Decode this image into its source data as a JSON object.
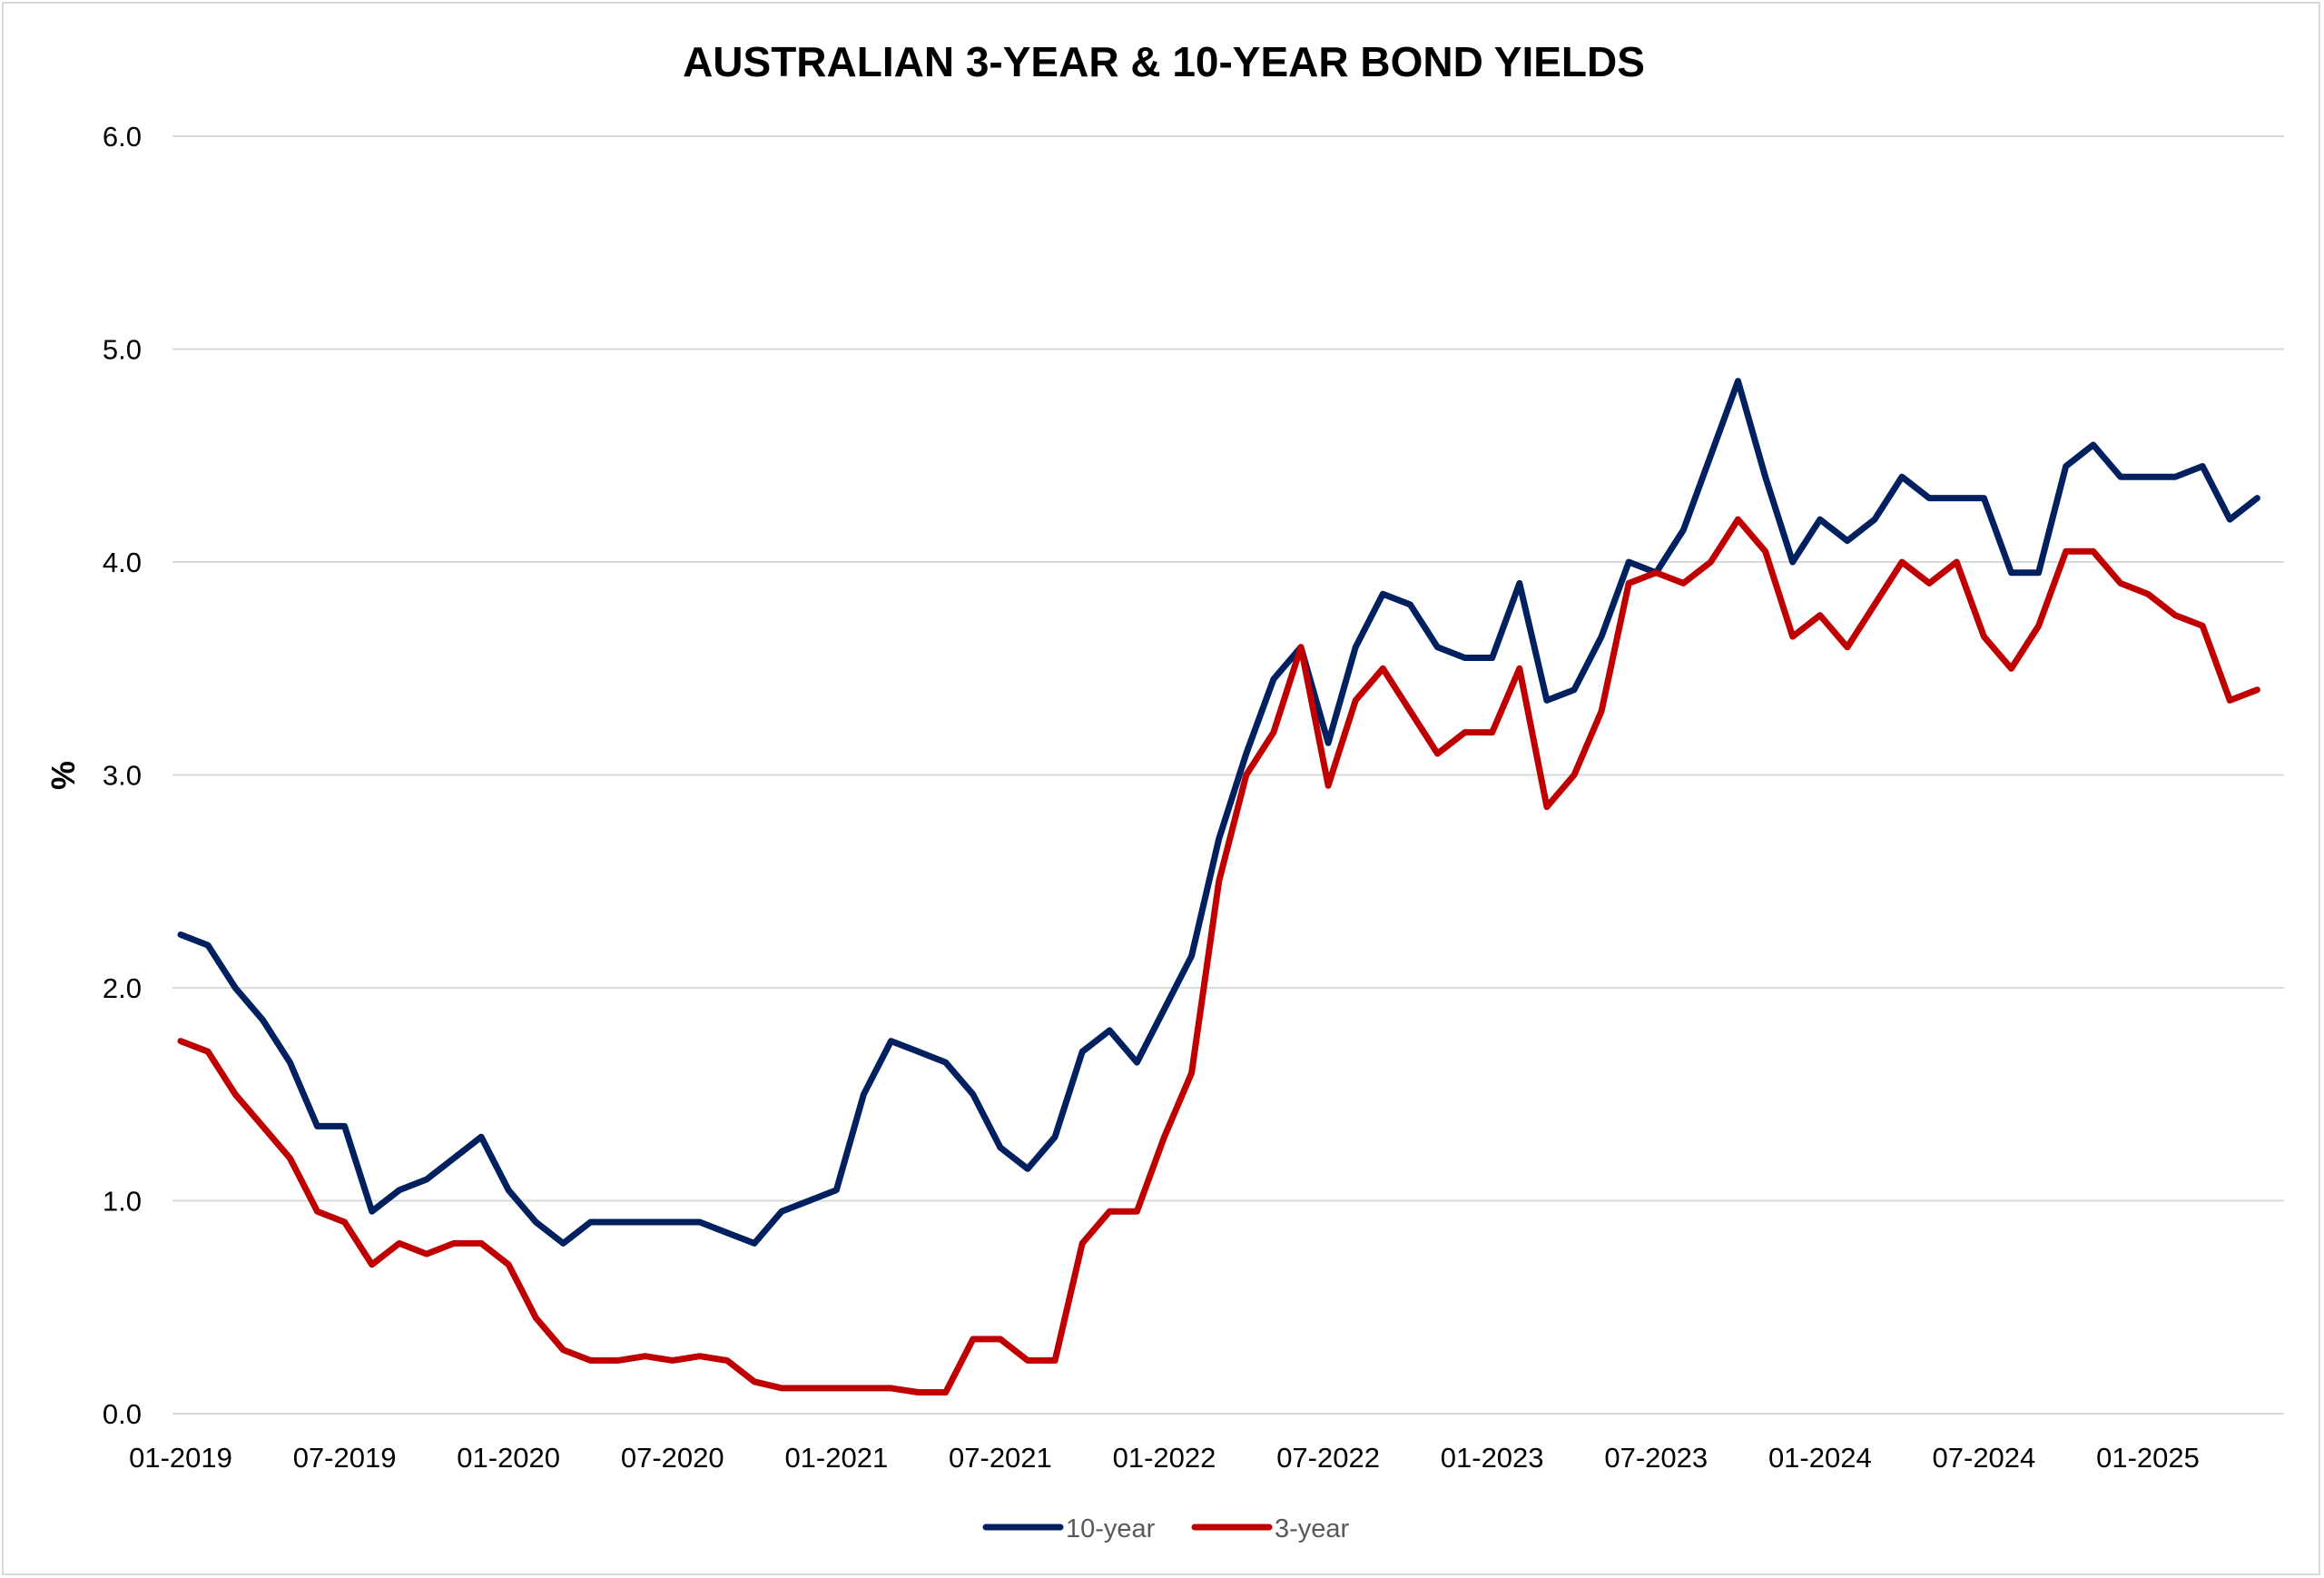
{
  "chart_data": {
    "type": "line",
    "title": "AUSTRALIAN 3-YEAR & 10-YEAR BOND YIELDS",
    "xlabel": "",
    "ylabel": "%",
    "ylim": [
      0,
      6
    ],
    "yticks": [
      "0.0",
      "1.0",
      "2.0",
      "3.0",
      "4.0",
      "5.0",
      "6.0"
    ],
    "xticks": [
      "01-2019",
      "07-2019",
      "01-2020",
      "07-2020",
      "01-2021",
      "07-2021",
      "01-2022",
      "07-2022",
      "01-2023",
      "07-2023",
      "01-2024",
      "07-2024",
      "01-2025"
    ],
    "grid": true,
    "legend_position": "bottom",
    "x": [
      "2019-01",
      "2019-02",
      "2019-03",
      "2019-04",
      "2019-05",
      "2019-06",
      "2019-07",
      "2019-08",
      "2019-09",
      "2019-10",
      "2019-11",
      "2019-12",
      "2020-01",
      "2020-02",
      "2020-03",
      "2020-04",
      "2020-05",
      "2020-06",
      "2020-07",
      "2020-08",
      "2020-09",
      "2020-10",
      "2020-11",
      "2020-12",
      "2021-01",
      "2021-02",
      "2021-03",
      "2021-04",
      "2021-05",
      "2021-06",
      "2021-07",
      "2021-08",
      "2021-09",
      "2021-10",
      "2021-11",
      "2021-12",
      "2022-01",
      "2022-02",
      "2022-03",
      "2022-04",
      "2022-05",
      "2022-06",
      "2022-07",
      "2022-08",
      "2022-09",
      "2022-10",
      "2022-11",
      "2022-12",
      "2023-01",
      "2023-02",
      "2023-03",
      "2023-04",
      "2023-05",
      "2023-06",
      "2023-07",
      "2023-08",
      "2023-09",
      "2023-10",
      "2023-11",
      "2023-12",
      "2024-01",
      "2024-02",
      "2024-03",
      "2024-04",
      "2024-05",
      "2024-06",
      "2024-07",
      "2024-08",
      "2024-09",
      "2024-10",
      "2024-11",
      "2024-12",
      "2025-01",
      "2025-02",
      "2025-03",
      "2025-04",
      "2025-05"
    ],
    "series": [
      {
        "name": "10-year",
        "color": "#002060",
        "values": [
          2.25,
          2.2,
          2.0,
          1.85,
          1.65,
          1.35,
          1.35,
          0.95,
          1.05,
          1.1,
          1.2,
          1.3,
          1.05,
          0.9,
          0.8,
          0.9,
          0.9,
          0.9,
          0.9,
          0.9,
          0.85,
          0.8,
          0.95,
          1.0,
          1.05,
          1.5,
          1.75,
          1.7,
          1.65,
          1.5,
          1.25,
          1.15,
          1.3,
          1.7,
          1.8,
          1.65,
          1.9,
          2.15,
          2.7,
          3.1,
          3.45,
          3.6,
          3.15,
          3.6,
          3.85,
          3.8,
          3.6,
          3.55,
          3.55,
          3.9,
          3.35,
          3.4,
          3.65,
          4.0,
          3.95,
          4.15,
          4.5,
          4.85,
          4.4,
          4.0,
          4.2,
          4.1,
          4.2,
          4.4,
          4.3,
          4.3,
          4.3,
          3.95,
          3.95,
          4.45,
          4.55,
          4.4,
          4.4,
          4.4,
          4.45,
          4.2,
          4.3
        ]
      },
      {
        "name": "3-year",
        "color": "#c00000",
        "values": [
          1.75,
          1.7,
          1.5,
          1.35,
          1.2,
          0.95,
          0.9,
          0.7,
          0.8,
          0.75,
          0.8,
          0.8,
          0.7,
          0.45,
          0.3,
          0.25,
          0.25,
          0.27,
          0.25,
          0.27,
          0.25,
          0.15,
          0.12,
          0.12,
          0.12,
          0.12,
          0.12,
          0.1,
          0.1,
          0.35,
          0.35,
          0.25,
          0.25,
          0.8,
          0.95,
          0.95,
          1.3,
          1.6,
          2.5,
          3.0,
          3.2,
          3.6,
          2.95,
          3.35,
          3.5,
          3.3,
          3.1,
          3.2,
          3.2,
          3.5,
          2.85,
          3.0,
          3.3,
          3.9,
          3.95,
          3.9,
          4.0,
          4.2,
          4.05,
          3.65,
          3.75,
          3.6,
          3.8,
          4.0,
          3.9,
          4.0,
          3.65,
          3.5,
          3.7,
          4.05,
          4.05,
          3.9,
          3.85,
          3.75,
          3.7,
          3.35,
          3.4
        ]
      }
    ]
  }
}
